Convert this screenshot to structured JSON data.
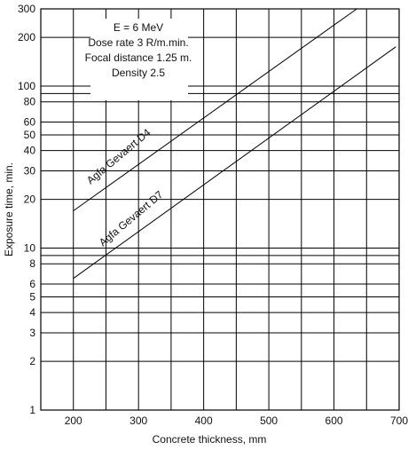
{
  "chart_data": {
    "type": "line",
    "title": "",
    "xlabel": "Concrete thickness, mm",
    "ylabel": "Exposure time, min.",
    "xlim": [
      150,
      700
    ],
    "ylim": [
      1,
      300
    ],
    "yscale": "log",
    "grid": true,
    "x_ticks": [
      200,
      300,
      400,
      500,
      600,
      700
    ],
    "x_tick_labels": [
      "200",
      "300",
      "400",
      "500",
      "600",
      "700"
    ],
    "y_ticks": [
      1,
      2,
      3,
      4,
      5,
      6,
      8,
      10,
      20,
      30,
      40,
      50,
      60,
      80,
      100,
      200,
      300
    ],
    "y_tick_labels": [
      "1",
      "2",
      "3",
      "4",
      "5",
      "6",
      "8",
      "10",
      "20",
      "30",
      "40",
      "50",
      "60",
      "80",
      "100",
      "200",
      "300"
    ],
    "annotations": [
      "E = 6 MeV",
      "Dose rate 3 R/m.min.",
      "Focal distance 1.25 m.",
      "Density 2.5"
    ],
    "series": [
      {
        "name": "Agfa Gevaert D4",
        "x": [
          200,
          635
        ],
        "y": [
          17,
          300
        ]
      },
      {
        "name": "Agfa Gevaert D7",
        "x": [
          200,
          695
        ],
        "y": [
          6.5,
          175
        ]
      }
    ]
  }
}
